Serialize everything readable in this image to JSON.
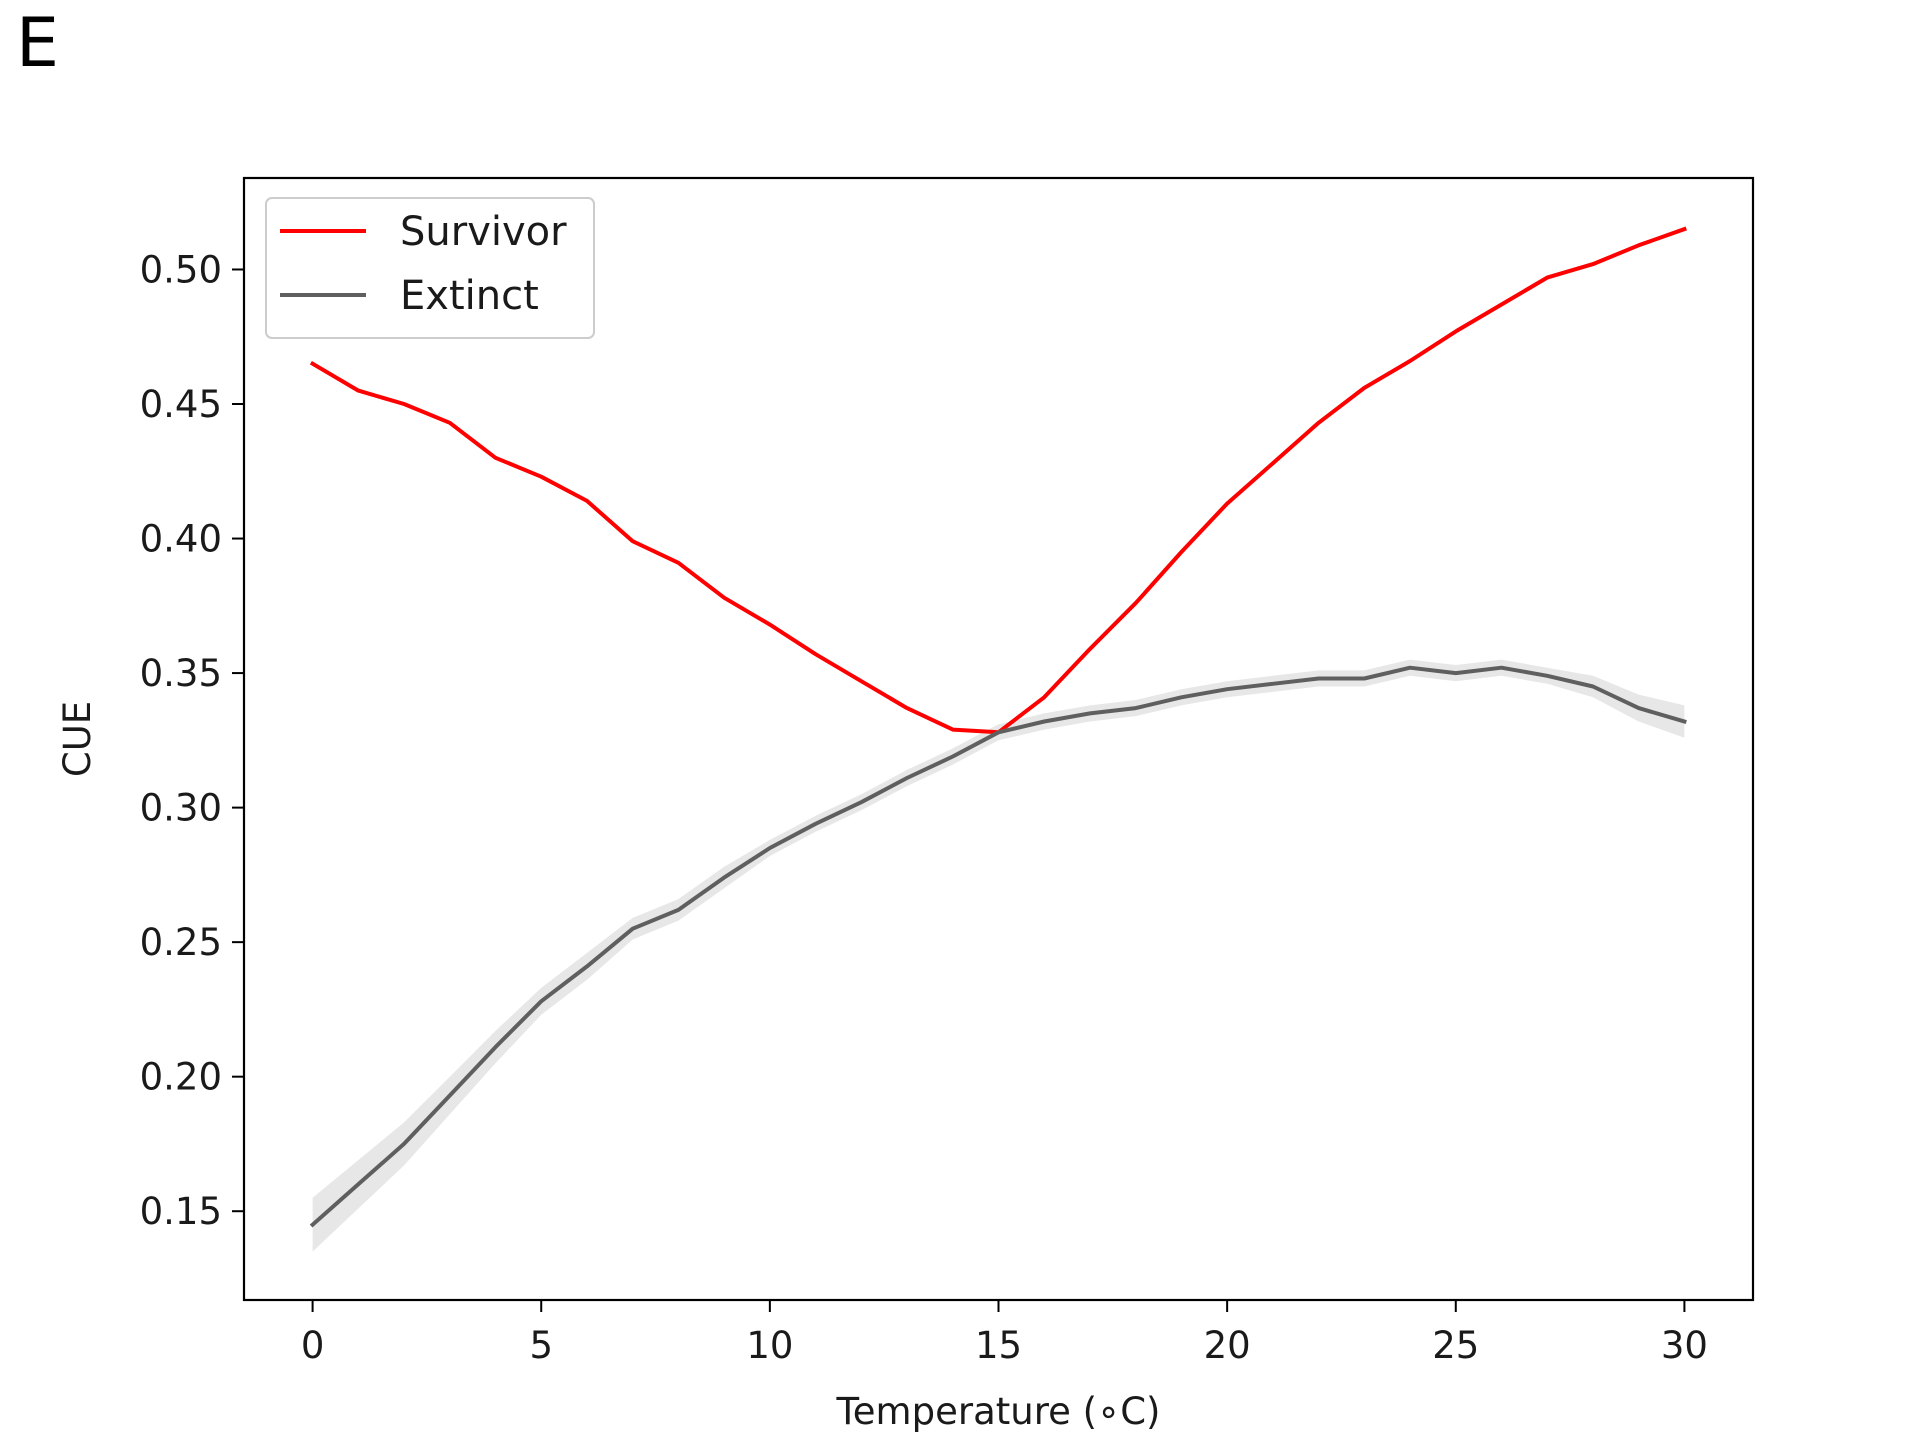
{
  "panel_label": "E",
  "chart_data": {
    "type": "line",
    "title": "",
    "xlabel": "Temperature (∘C)",
    "ylabel": "CUE",
    "xlim": [
      -1.5,
      31.5
    ],
    "ylim": [
      0.117,
      0.534
    ],
    "xticks": [
      0,
      5,
      10,
      15,
      20,
      25,
      30
    ],
    "xtick_labels": [
      "0",
      "5",
      "10",
      "15",
      "20",
      "25",
      "30"
    ],
    "yticks": [
      0.15,
      0.2,
      0.25,
      0.3,
      0.35,
      0.4,
      0.45,
      0.5
    ],
    "ytick_labels": [
      "0.15",
      "0.20",
      "0.25",
      "0.30",
      "0.35",
      "0.40",
      "0.45",
      "0.50"
    ],
    "grid": false,
    "legend_position": "top-left",
    "x": [
      0,
      1,
      2,
      3,
      4,
      5,
      6,
      7,
      8,
      9,
      10,
      11,
      12,
      13,
      14,
      15,
      16,
      17,
      18,
      19,
      20,
      21,
      22,
      23,
      24,
      25,
      26,
      27,
      28,
      29,
      30
    ],
    "series": [
      {
        "name": "Survivor",
        "color": "#ff0000",
        "values": [
          0.465,
          0.455,
          0.45,
          0.443,
          0.43,
          0.423,
          0.414,
          0.399,
          0.391,
          0.378,
          0.368,
          0.357,
          0.347,
          0.337,
          0.329,
          0.328,
          0.341,
          0.359,
          0.376,
          0.395,
          0.413,
          0.428,
          0.443,
          0.456,
          0.466,
          0.477,
          0.487,
          0.497,
          0.502,
          0.509,
          0.515
        ],
        "band": null
      },
      {
        "name": "Extinct",
        "color": "#5f5f5f",
        "values": [
          0.145,
          0.16,
          0.175,
          0.193,
          0.211,
          0.228,
          0.241,
          0.255,
          0.262,
          0.274,
          0.285,
          0.294,
          0.302,
          0.311,
          0.319,
          0.328,
          0.332,
          0.335,
          0.337,
          0.341,
          0.344,
          0.346,
          0.348,
          0.348,
          0.352,
          0.35,
          0.352,
          0.349,
          0.345,
          0.337,
          0.332
        ],
        "band": [
          0.01,
          0.009,
          0.008,
          0.007,
          0.006,
          0.005,
          0.005,
          0.004,
          0.004,
          0.004,
          0.003,
          0.003,
          0.003,
          0.003,
          0.003,
          0.003,
          0.003,
          0.003,
          0.003,
          0.003,
          0.003,
          0.003,
          0.003,
          0.003,
          0.003,
          0.003,
          0.003,
          0.003,
          0.004,
          0.005,
          0.006
        ]
      }
    ]
  }
}
